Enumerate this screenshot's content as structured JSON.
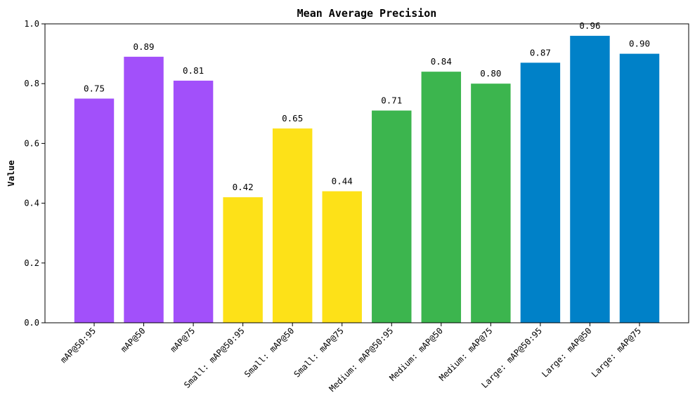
{
  "chart_data": {
    "type": "bar",
    "title": "Mean Average Precision",
    "xlabel": "",
    "ylabel": "Value",
    "ylim": [
      0,
      1.0
    ],
    "yticks": [
      "0.0",
      "0.2",
      "0.4",
      "0.6",
      "0.8",
      "1.0"
    ],
    "grid": false,
    "categories": [
      "mAP@50:95",
      "mAP@50",
      "mAP@75",
      "Small: mAP@50:95",
      "Small: mAP@50",
      "Small: mAP@75",
      "Medium: mAP@50:95",
      "Medium: mAP@50",
      "Medium: mAP@75",
      "Large: mAP@50:95",
      "Large: mAP@50",
      "Large: mAP@75"
    ],
    "values": [
      0.75,
      0.89,
      0.81,
      0.42,
      0.65,
      0.44,
      0.71,
      0.84,
      0.8,
      0.87,
      0.96,
      0.9
    ],
    "value_labels": [
      "0.75",
      "0.89",
      "0.81",
      "0.42",
      "0.65",
      "0.44",
      "0.71",
      "0.84",
      "0.80",
      "0.87",
      "0.96",
      "0.90"
    ],
    "colors": [
      "#a250fa",
      "#a250fa",
      "#a250fa",
      "#fde118",
      "#fde118",
      "#fde118",
      "#3cb54e",
      "#3cb54e",
      "#3cb54e",
      "#0081c8",
      "#0081c8",
      "#0081c8"
    ]
  }
}
